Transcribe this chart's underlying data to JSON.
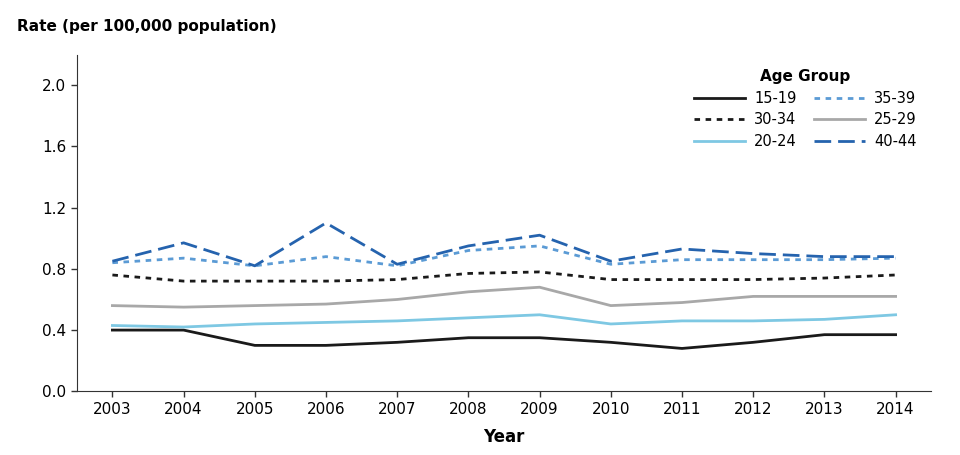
{
  "years": [
    2003,
    2004,
    2005,
    2006,
    2007,
    2008,
    2009,
    2010,
    2011,
    2012,
    2013,
    2014
  ],
  "series": {
    "15-19": [
      0.4,
      0.4,
      0.3,
      0.3,
      0.32,
      0.35,
      0.35,
      0.32,
      0.28,
      0.32,
      0.37,
      0.37
    ],
    "20-24": [
      0.43,
      0.42,
      0.44,
      0.45,
      0.46,
      0.48,
      0.5,
      0.44,
      0.46,
      0.46,
      0.47,
      0.5
    ],
    "25-29": [
      0.56,
      0.55,
      0.56,
      0.57,
      0.6,
      0.65,
      0.68,
      0.56,
      0.58,
      0.62,
      0.62,
      0.62
    ],
    "30-34": [
      0.76,
      0.72,
      0.72,
      0.72,
      0.73,
      0.77,
      0.78,
      0.73,
      0.73,
      0.73,
      0.74,
      0.76
    ],
    "35-39": [
      0.84,
      0.87,
      0.82,
      0.88,
      0.82,
      0.92,
      0.95,
      0.83,
      0.86,
      0.86,
      0.86,
      0.87
    ],
    "40-44": [
      0.85,
      0.97,
      0.82,
      1.1,
      0.83,
      0.95,
      1.02,
      0.85,
      0.93,
      0.9,
      0.88,
      0.88
    ]
  },
  "colors": {
    "15-19": "#1a1a1a",
    "20-24": "#7ec8e3",
    "25-29": "#a8a8a8",
    "30-34": "#1a1a1a",
    "35-39": "#5b9bd5",
    "40-44": "#2563ae"
  },
  "linestyles": {
    "15-19": "solid",
    "20-24": "solid",
    "25-29": "solid",
    "30-34": "dotted",
    "35-39": "dotted",
    "40-44": "dashed"
  },
  "linewidths": {
    "15-19": 2.0,
    "20-24": 2.0,
    "25-29": 2.0,
    "30-34": 2.0,
    "35-39": 2.0,
    "40-44": 2.0
  },
  "ylabel": "Rate (per 100,000 population)",
  "xlabel": "Year",
  "legend_title": "Age Group",
  "ylim": [
    0.0,
    2.2
  ],
  "yticks": [
    0.0,
    0.4,
    0.8,
    1.2,
    1.6,
    2.0
  ],
  "background_color": "#ffffff"
}
